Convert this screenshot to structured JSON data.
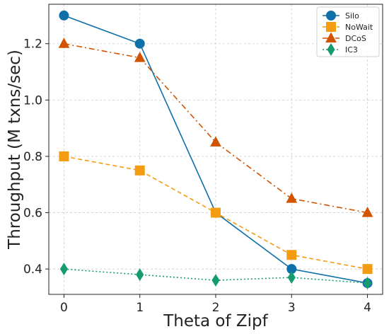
{
  "chart_data": {
    "type": "line",
    "title": "",
    "xlabel": "Theta of Zipf",
    "ylabel": "Throughput (M txns/sec)",
    "x": [
      0,
      1,
      2,
      3,
      4
    ],
    "xticks": [
      "0",
      "1",
      "2",
      "3",
      "4"
    ],
    "yticks": [
      "0.4",
      "0.6",
      "0.8",
      "1.0",
      "1.2"
    ],
    "xlim": [
      -0.2,
      4.2
    ],
    "ylim": [
      0.31,
      1.34
    ],
    "grid": true,
    "legend_position": "top-right",
    "series": [
      {
        "name": "Silo",
        "values": [
          1.3,
          1.2,
          0.6,
          0.4,
          0.35
        ],
        "color": "#0f6fa8",
        "marker": "circle",
        "dash": "solid"
      },
      {
        "name": "NoWait",
        "values": [
          0.8,
          0.75,
          0.6,
          0.45,
          0.4
        ],
        "color": "#f39c12",
        "marker": "square",
        "dash": "dashed"
      },
      {
        "name": "DCoS",
        "values": [
          1.2,
          1.15,
          0.85,
          0.65,
          0.6
        ],
        "color": "#d35400",
        "marker": "triangle",
        "dash": "dashdot"
      },
      {
        "name": "IC3",
        "values": [
          0.4,
          0.38,
          0.36,
          0.37,
          0.35
        ],
        "color": "#169b6e",
        "marker": "diamond",
        "dash": "dotted"
      }
    ]
  }
}
